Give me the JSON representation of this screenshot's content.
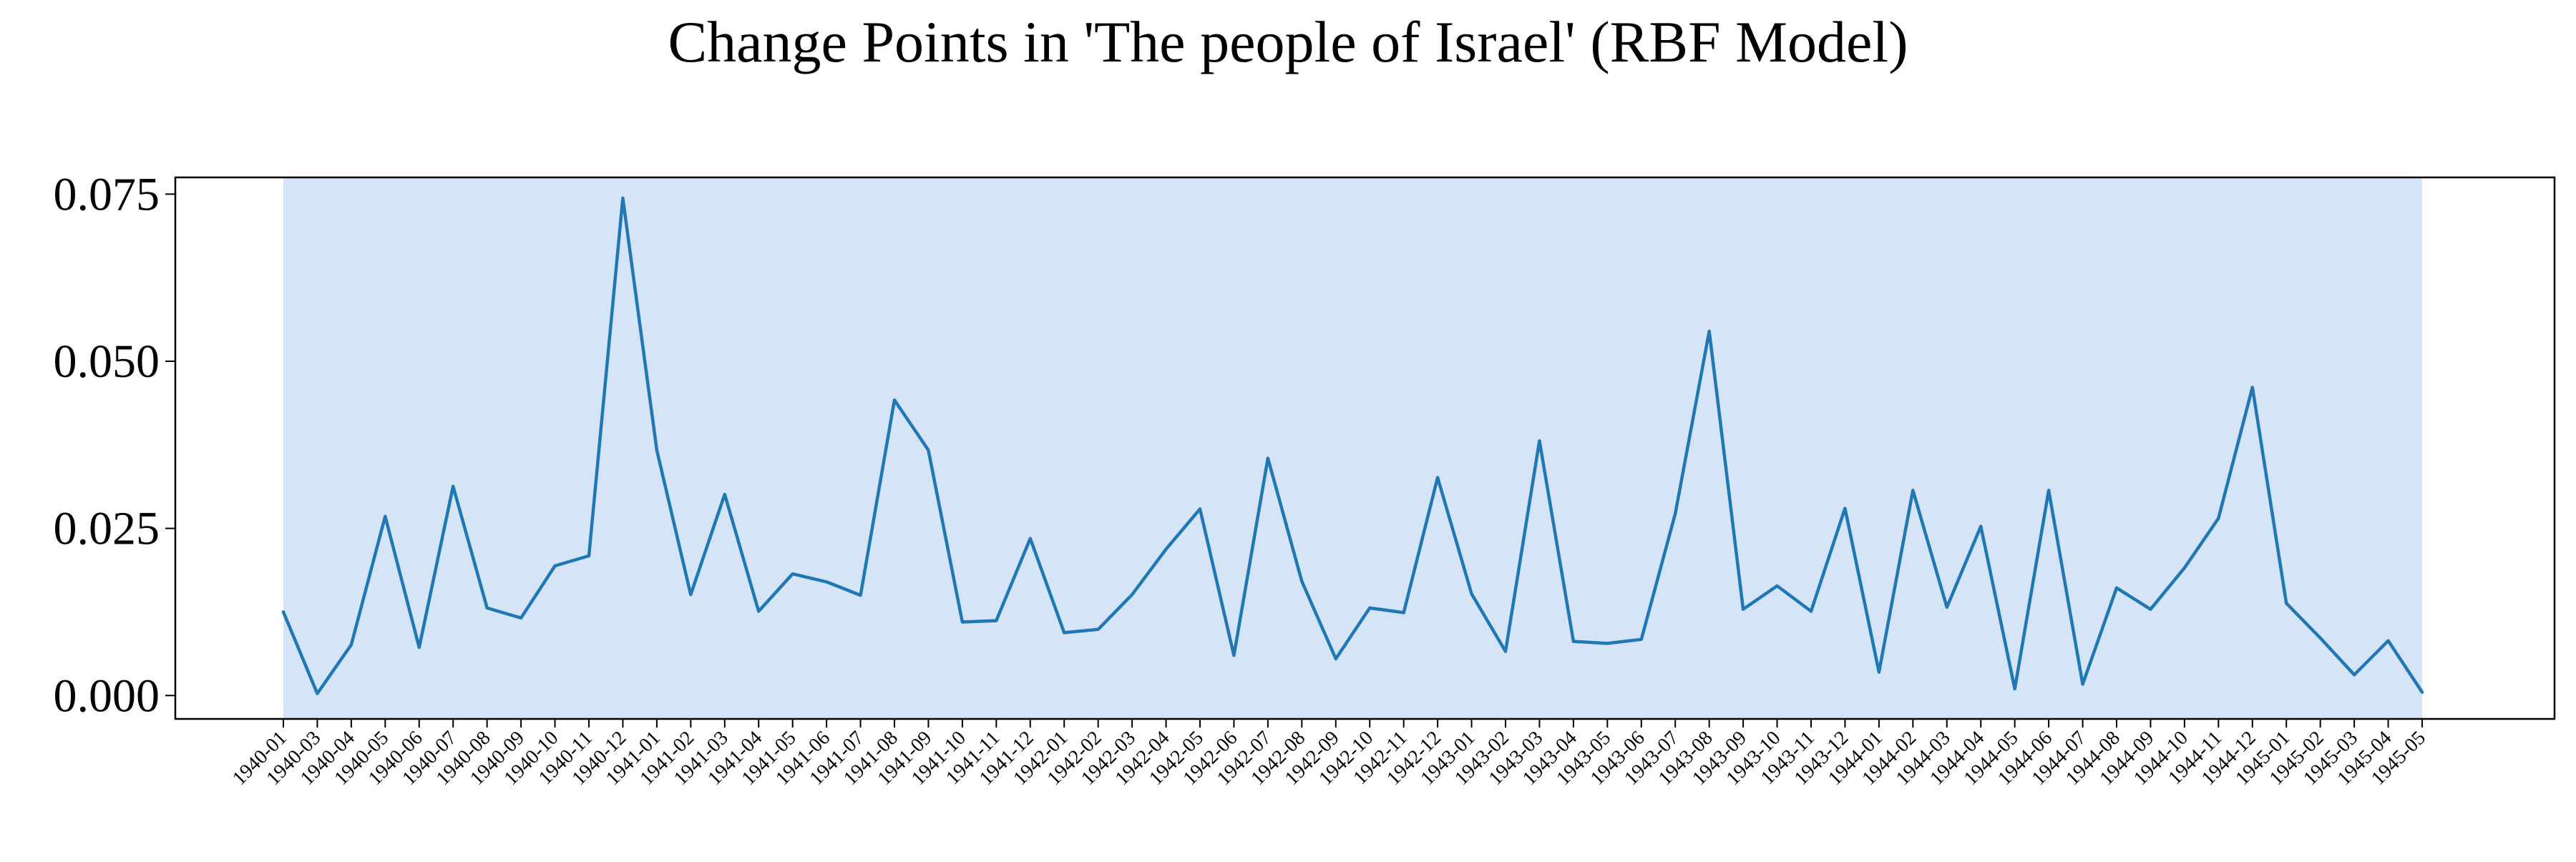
{
  "chart_data": {
    "type": "line",
    "title": "Change Points in 'The people of Israel' (RBF Model)",
    "xlabel": "",
    "ylabel": "",
    "ylim": [
      -0.0035,
      0.0775
    ],
    "yticks": [
      "0.000",
      "0.025",
      "0.050",
      "0.075"
    ],
    "ytick_values": [
      0.0,
      0.025,
      0.05,
      0.075
    ],
    "grid": false,
    "legend": "none",
    "shaded_segment": {
      "start": "1940-01",
      "end": "1945-05",
      "color": "#d6e4f8"
    },
    "line_color": "#1f77b4",
    "x": [
      "1940-01",
      "1940-03",
      "1940-04",
      "1940-05",
      "1940-06",
      "1940-07",
      "1940-08",
      "1940-09",
      "1940-10",
      "1940-11",
      "1940-12",
      "1941-01",
      "1941-02",
      "1941-03",
      "1941-04",
      "1941-05",
      "1941-06",
      "1941-07",
      "1941-08",
      "1941-09",
      "1941-10",
      "1941-11",
      "1941-12",
      "1942-01",
      "1942-02",
      "1942-03",
      "1942-04",
      "1942-05",
      "1942-06",
      "1942-07",
      "1942-08",
      "1942-09",
      "1942-10",
      "1942-11",
      "1942-12",
      "1943-01",
      "1943-02",
      "1943-03",
      "1943-04",
      "1943-05",
      "1943-06",
      "1943-07",
      "1943-08",
      "1943-09",
      "1943-10",
      "1943-11",
      "1943-12",
      "1944-01",
      "1944-02",
      "1944-03",
      "1944-04",
      "1944-05",
      "1944-06",
      "1944-07",
      "1944-08",
      "1944-09",
      "1944-10",
      "1944-11",
      "1944-12",
      "1945-01",
      "1945-02",
      "1945-03",
      "1945-04",
      "1945-05"
    ],
    "series": [
      {
        "values": [
          0.0125,
          0.0003,
          0.0076,
          0.0268,
          0.0072,
          0.0313,
          0.0131,
          0.0116,
          0.0194,
          0.0209,
          0.0744,
          0.0367,
          0.0151,
          0.0301,
          0.0126,
          0.0182,
          0.017,
          0.015,
          0.0442,
          0.0367,
          0.011,
          0.0112,
          0.0235,
          0.0094,
          0.0099,
          0.0151,
          0.0219,
          0.0279,
          0.006,
          0.0355,
          0.0171,
          0.0055,
          0.0131,
          0.0124,
          0.0326,
          0.0152,
          0.0066,
          0.0381,
          0.0081,
          0.0078,
          0.0084,
          0.0272,
          0.0545,
          0.0129,
          0.0164,
          0.0126,
          0.028,
          0.0035,
          0.0307,
          0.0132,
          0.0253,
          0.001,
          0.0307,
          0.0017,
          0.0161,
          0.0129,
          0.0191,
          0.0265,
          0.0461,
          0.0138,
          0.0086,
          0.0031,
          0.0082,
          0.0005
        ]
      }
    ]
  }
}
